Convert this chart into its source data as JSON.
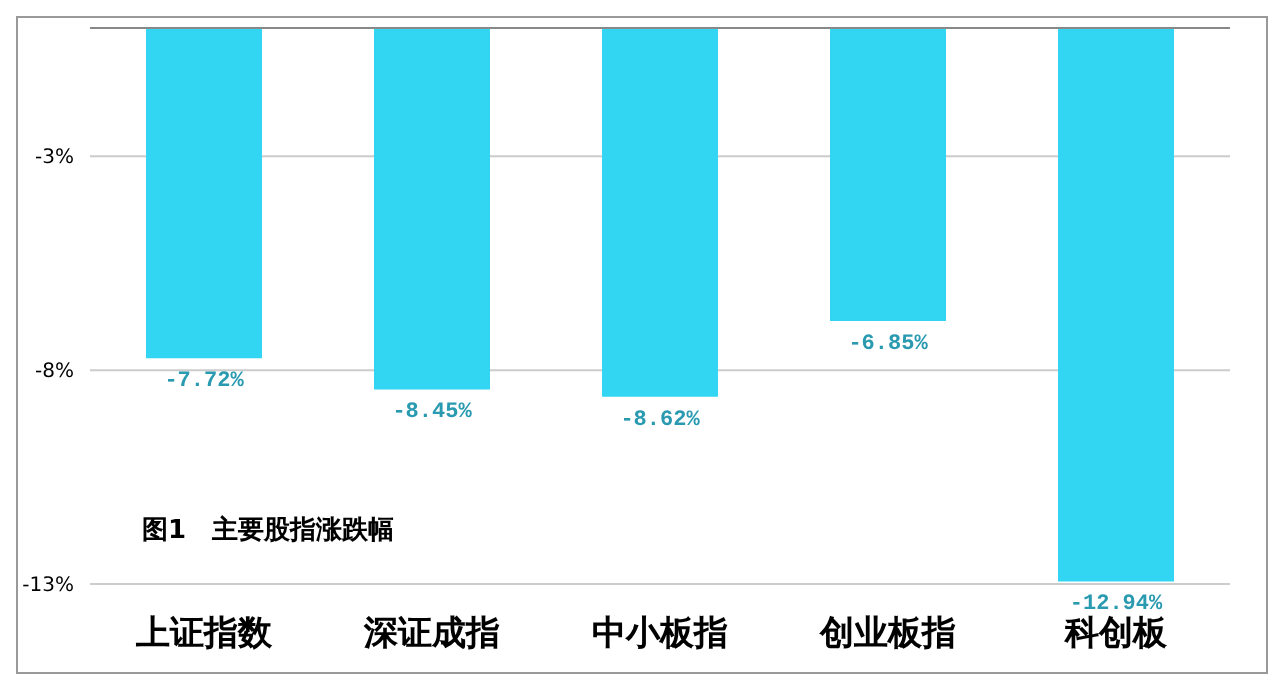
{
  "chart_data": {
    "type": "bar",
    "categories": [
      "上证指数",
      "深证成指",
      "中小板指",
      "创业板指",
      "科创板"
    ],
    "values": [
      -7.72,
      -8.45,
      -8.62,
      -6.85,
      -12.94
    ],
    "value_labels": [
      "-7.72%",
      "-8.45%",
      "-8.62%",
      "-6.85%",
      "-12.94%"
    ],
    "color": "#33d6f2",
    "ylim": [
      -13,
      0
    ],
    "yticks": [
      {
        "value": -3,
        "label": "-3%"
      },
      {
        "value": -8,
        "label": "-8%"
      },
      {
        "value": -13,
        "label": "-13%"
      }
    ],
    "grid": "y",
    "annotations": [
      "图1　主要股指涨跌幅"
    ]
  }
}
